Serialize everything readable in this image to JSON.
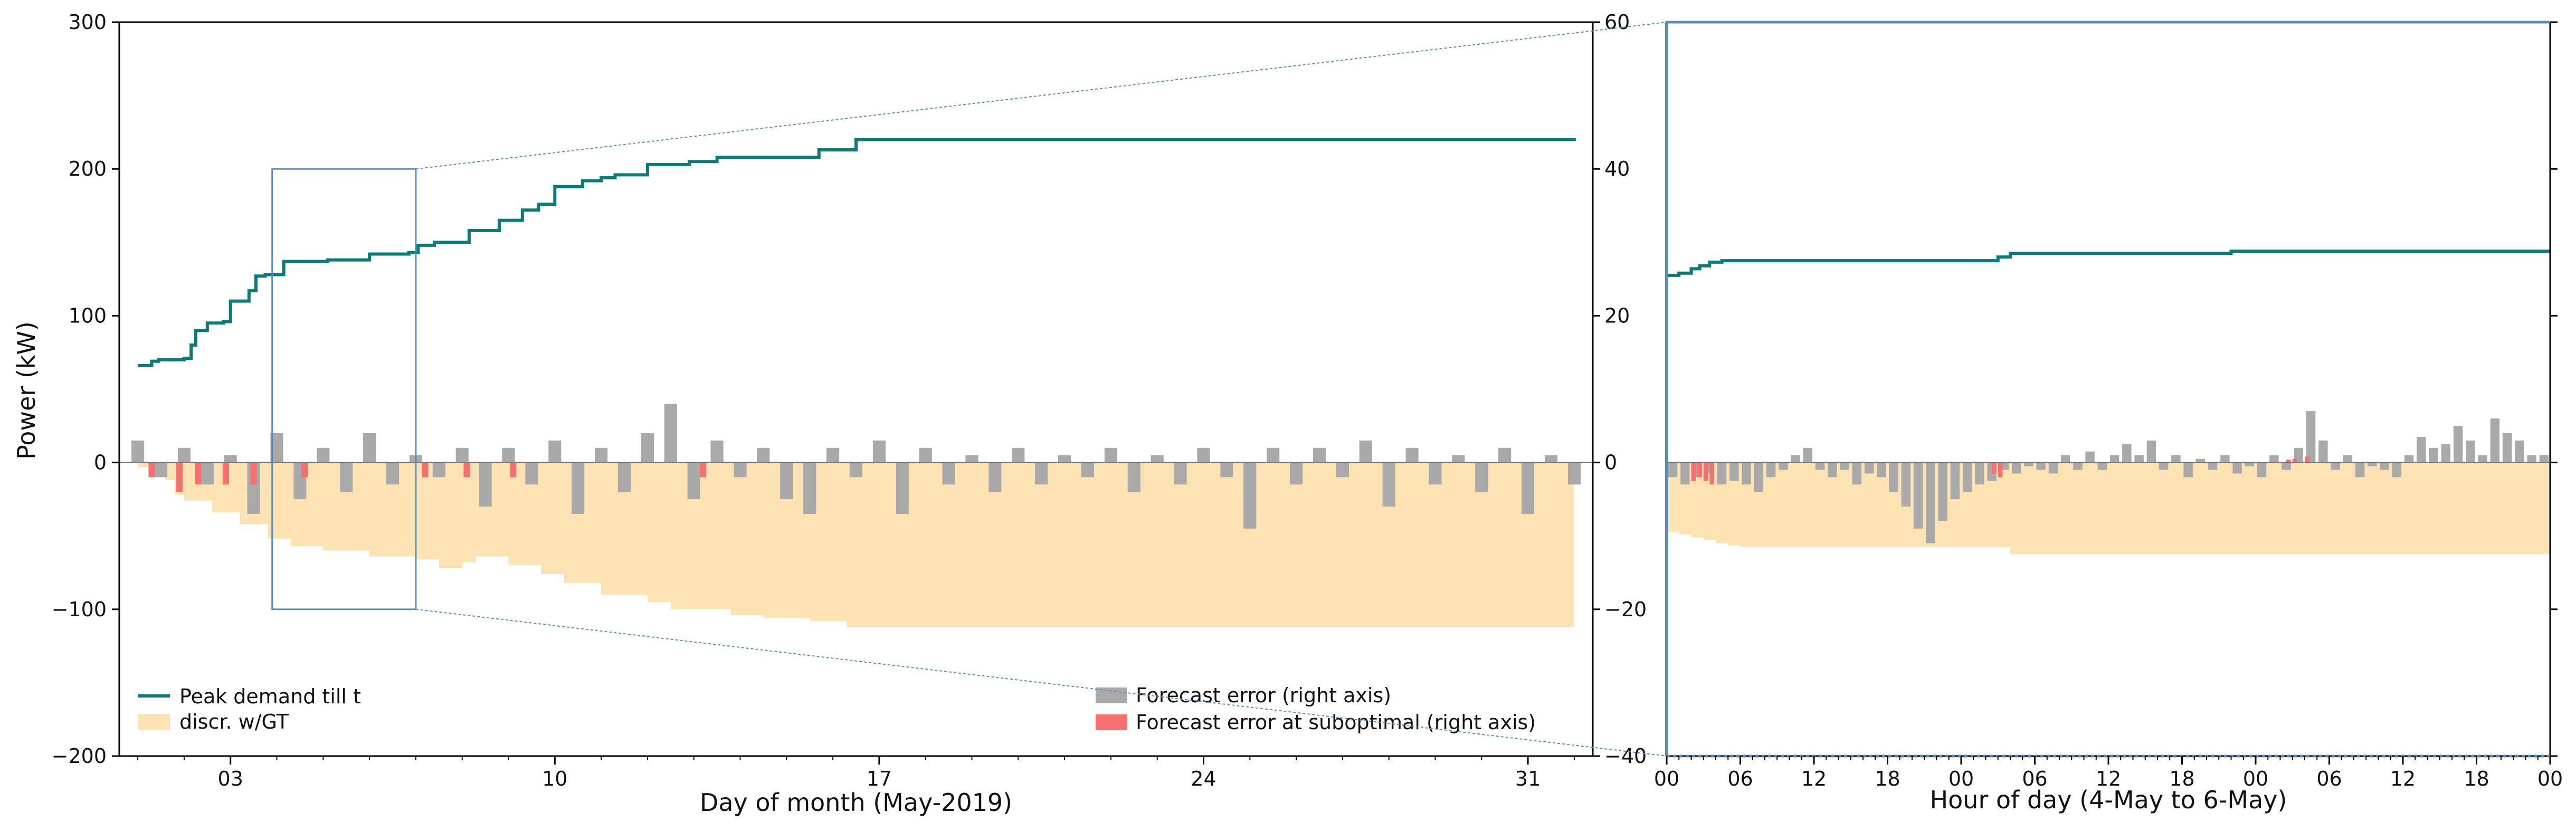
{
  "chart_data": [
    {
      "type": "line+bar",
      "title": "",
      "xlabel": "Day of month (May-2019)",
      "ylabel": "Power (kW)",
      "ylim": [
        -200,
        300
      ],
      "right_ylim": [
        -40,
        60
      ],
      "x_ticks": [
        "03",
        "10",
        "17",
        "24",
        "31"
      ],
      "x_tick_days": [
        3,
        10,
        17,
        24,
        31
      ],
      "xlim_days": [
        0.6,
        32.4
      ],
      "y_ticks": [
        -200,
        -100,
        0,
        100,
        200,
        300
      ],
      "y_ticks_right": [
        -40,
        -20,
        0,
        20,
        40,
        60
      ],
      "grid": false,
      "legend_placement": "bottom",
      "legend_left": [
        {
          "label": "Peak demand till t",
          "style": "line",
          "color": "#0a7c78"
        },
        {
          "label": "discr. w/GT",
          "style": "patch",
          "color": "#fde2b4"
        }
      ],
      "legend_right": [
        {
          "label": "Forecast error (right axis)",
          "style": "patch",
          "color": "#a9a9a9"
        },
        {
          "label": "Forecast error at suboptimal (right axis)",
          "style": "patch",
          "color": "#f77070"
        }
      ],
      "series": [
        {
          "name": "Peak demand till t",
          "kind": "step",
          "color": "#0a7c78",
          "x_day": [
            1,
            1.3,
            1.45,
            2.0,
            2.15,
            2.25,
            2.5,
            2.85,
            3.0,
            3.4,
            3.55,
            3.75,
            4.15,
            5.1,
            6.0,
            6.85,
            7.05,
            7.4,
            8.15,
            8.8,
            9.3,
            9.65,
            10.0,
            10.6,
            11.0,
            11.3,
            12.0,
            12.9,
            13.5,
            15.7,
            16.5,
            32.0
          ],
          "y": [
            66,
            69,
            70,
            71,
            80,
            90,
            95,
            96,
            110,
            117,
            127,
            128,
            137,
            138,
            142,
            143,
            148,
            150,
            158,
            165,
            172,
            176,
            188,
            192,
            194,
            196,
            203,
            205,
            208,
            213,
            220,
            221
          ]
        },
        {
          "name": "discr. w/GT",
          "kind": "area",
          "color": "#fde2b4",
          "x_day": [
            1,
            1.3,
            1.6,
            1.8,
            2.0,
            2.6,
            3.2,
            3.8,
            4.3,
            5.0,
            6.0,
            7.0,
            7.5,
            8.0,
            8.3,
            9.0,
            9.7,
            10.2,
            11.0,
            12.0,
            12.5,
            13.8,
            14.5,
            15.5,
            16.3,
            32.0
          ],
          "y": [
            -3,
            -5,
            -12,
            -22,
            -26,
            -34,
            -42,
            -52,
            -57,
            -60,
            -64,
            -66,
            -72,
            -68,
            -64,
            -70,
            -76,
            -82,
            -90,
            -95,
            -100,
            -104,
            -106,
            -108,
            -112,
            -116
          ]
        },
        {
          "name": "Forecast error (right axis)",
          "kind": "bar",
          "color": "#a9a9a9",
          "x_day": [
            1,
            1.5,
            2,
            2.5,
            3,
            3.5,
            4,
            4.5,
            5,
            5.5,
            6,
            6.5,
            7,
            7.5,
            8,
            8.5,
            9,
            9.5,
            10,
            10.5,
            11,
            11.5,
            12,
            12.5,
            13,
            13.5,
            14,
            14.5,
            15,
            15.5,
            16,
            16.5,
            17,
            17.5,
            18,
            18.5,
            19,
            19.5,
            20,
            20.5,
            21,
            21.5,
            22,
            22.5,
            23,
            23.5,
            24,
            24.5,
            25,
            25.5,
            26,
            26.5,
            27,
            27.5,
            28,
            28.5,
            29,
            29.5,
            30,
            30.5,
            31,
            31.5,
            32
          ],
          "y": [
            3,
            -2,
            2,
            -3,
            1,
            -7,
            4,
            -5,
            2,
            -4,
            4,
            -3,
            1,
            -2,
            2,
            -6,
            2,
            -3,
            3,
            -7,
            2,
            -4,
            4,
            8,
            -5,
            3,
            -2,
            2,
            -5,
            -7,
            2,
            -2,
            3,
            -7,
            2,
            -3,
            1,
            -4,
            2,
            -3,
            1,
            -2,
            2,
            -4,
            1,
            -3,
            2,
            -2,
            -9,
            2,
            -3,
            2,
            -2,
            3,
            -6,
            2,
            -3,
            1,
            -4,
            2,
            -7,
            1,
            -3
          ]
        },
        {
          "name": "Forecast error at suboptimal (right axis)",
          "kind": "bar",
          "color": "#f77070",
          "x_day": [
            1.3,
            1.9,
            2.3,
            2.9,
            3.5,
            4.6,
            7.2,
            8.1,
            9.1,
            13.2
          ],
          "y": [
            -2,
            -4,
            -3,
            -3,
            -3,
            -2,
            -2,
            -2,
            -2,
            -2
          ]
        }
      ],
      "zoom_box": {
        "x_day": [
          3.9,
          7.0
        ],
        "y": [
          -100,
          200
        ]
      }
    },
    {
      "type": "line+bar",
      "title": "",
      "xlabel": "Hour of day (4-May to 6-May)",
      "ylabel": "",
      "ylim": [
        -40,
        60
      ],
      "xlim_hours": [
        0,
        72
      ],
      "x_ticks": [
        "00",
        "06",
        "12",
        "18",
        "00",
        "06",
        "12",
        "18",
        "00",
        "06",
        "12",
        "18",
        "00"
      ],
      "y_ticks_left": [
        -40,
        -20,
        0,
        20,
        40,
        60
      ],
      "grid": false,
      "series": [
        {
          "name": "Peak demand till t",
          "kind": "step",
          "color": "#0a7c78",
          "x_hour": [
            0,
            1,
            2,
            2.7,
            3.5,
            4.5,
            26,
            27,
            28,
            42,
            46,
            72
          ],
          "y": [
            25.5,
            25.8,
            26.4,
            26.8,
            27.3,
            27.5,
            27.5,
            28.0,
            28.5,
            28.5,
            28.8,
            28.8
          ]
        },
        {
          "name": "discr. w/GT",
          "kind": "area",
          "color": "#fde2b4",
          "x_hour": [
            0,
            1,
            2,
            3,
            4,
            5,
            6,
            27,
            28,
            72
          ],
          "y": [
            -9.5,
            -9.8,
            -10.2,
            -10.6,
            -11,
            -11.3,
            -11.5,
            -11.5,
            -12.5,
            -12.8
          ]
        },
        {
          "name": "Forecast error (right axis)",
          "kind": "bar",
          "color": "#a9a9a9",
          "x_hour": [
            0,
            1,
            2,
            3,
            4,
            5,
            6,
            7,
            8,
            9,
            10,
            11,
            12,
            13,
            14,
            15,
            16,
            17,
            18,
            19,
            20,
            21,
            22,
            23,
            24,
            25,
            26,
            27,
            28,
            29,
            30,
            31,
            32,
            33,
            34,
            35,
            36,
            37,
            38,
            39,
            40,
            41,
            42,
            43,
            44,
            45,
            46,
            47,
            48,
            49,
            50,
            51,
            52,
            53,
            54,
            55,
            56,
            57,
            58,
            59,
            60,
            61,
            62,
            63,
            64,
            65,
            66,
            67,
            68,
            69,
            70,
            71
          ],
          "y": [
            -2,
            -3,
            -2,
            -1.5,
            -3,
            -2.5,
            -3,
            -4,
            -2,
            -1,
            1,
            2,
            -1,
            -2,
            -1,
            -3,
            -1.5,
            -2,
            -4,
            -6,
            -9,
            -11,
            -8,
            -5,
            -4,
            -3,
            -2.5,
            -1,
            -1.5,
            -0.5,
            -1,
            -1.5,
            1,
            -1,
            1.5,
            -1,
            1,
            2.5,
            1,
            3,
            -1,
            1,
            -2,
            0.5,
            -1,
            1,
            -1.5,
            -0.5,
            -2,
            1,
            -1,
            2,
            7,
            3,
            -1,
            1,
            -2,
            -0.5,
            -1,
            -2,
            1,
            3.5,
            2,
            2.5,
            5,
            3,
            1,
            6,
            4,
            3,
            1,
            1
          ]
        },
        {
          "name": "Forecast error at suboptimal (right axis)",
          "kind": "bar",
          "color": "#f77070",
          "x_hour": [
            2,
            2.5,
            3,
            3.5,
            26.5,
            27,
            52,
            51,
            50.5
          ],
          "y": [
            -2.5,
            -2.0,
            -2.5,
            -3.0,
            -1.5,
            -2.0,
            0.8,
            0.5,
            0.4
          ]
        }
      ]
    }
  ],
  "colors": {
    "peak": "#0a7c78",
    "discr": "#fde2b4",
    "error": "#a9a9a9",
    "error_subopt": "#f77070",
    "zoom": "#5b8db8"
  }
}
